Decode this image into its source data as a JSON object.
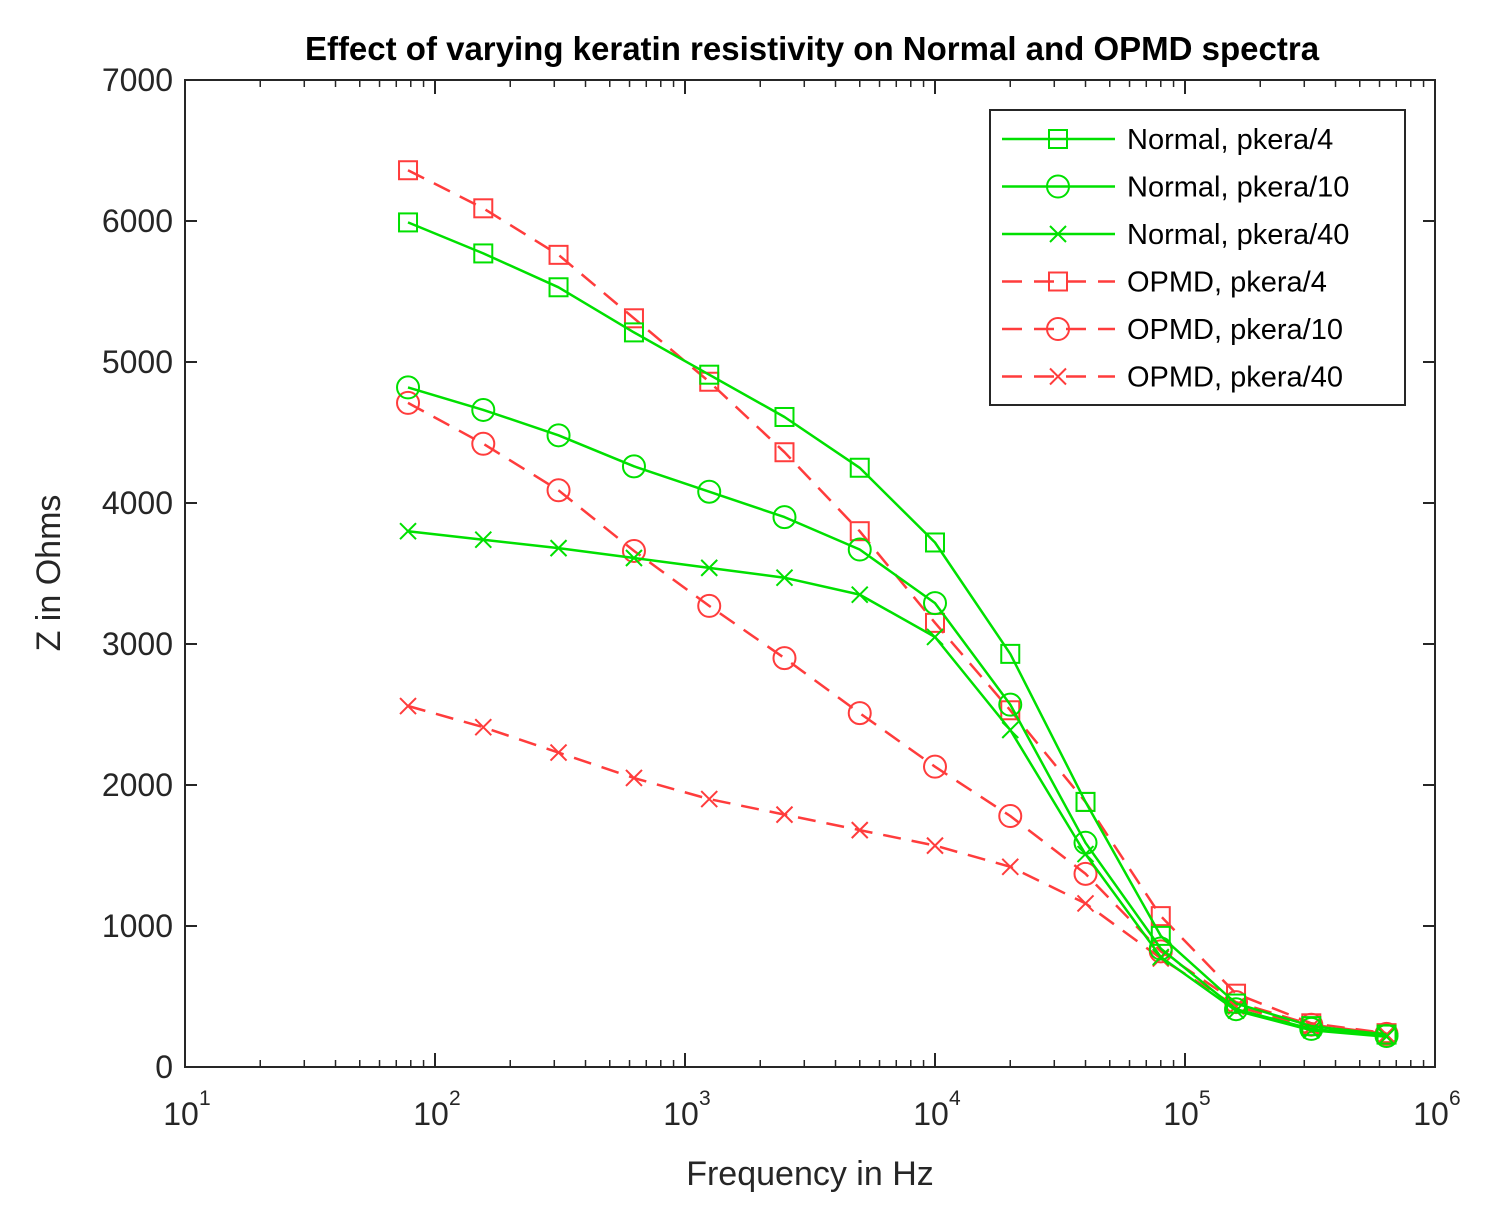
{
  "chart_data": {
    "type": "line",
    "title": "Effect of varying keratin resistivity on Normal and OPMD spectra",
    "xlabel": "Frequency in Hz",
    "ylabel": "Z in Ohms",
    "xscale": "log",
    "xlim": [
      10,
      1000000
    ],
    "ylim": [
      0,
      7000
    ],
    "x_tick_bases": [
      "10",
      "10",
      "10",
      "10",
      "10",
      "10"
    ],
    "x_tick_exponents": [
      "1",
      "2",
      "3",
      "4",
      "5",
      "6"
    ],
    "y_ticks": [
      "0",
      "1000",
      "2000",
      "3000",
      "4000",
      "5000",
      "6000",
      "7000"
    ],
    "legend_position": "top-right",
    "x": [
      78,
      156,
      312,
      625,
      1250,
      2500,
      5000,
      10000,
      20000,
      40000,
      80000,
      160000,
      320000,
      640000
    ],
    "series": [
      {
        "name": "Normal, pkera/4",
        "color": "#00e000",
        "linestyle": "solid",
        "marker": "square",
        "values": [
          5990,
          5770,
          5530,
          5210,
          4910,
          4610,
          4250,
          3720,
          2930,
          1880,
          930,
          450,
          290,
          230
        ]
      },
      {
        "name": "Normal, pkera/10",
        "color": "#00e000",
        "linestyle": "solid",
        "marker": "circle",
        "values": [
          4820,
          4660,
          4480,
          4260,
          4080,
          3900,
          3670,
          3290,
          2570,
          1590,
          840,
          410,
          270,
          220
        ]
      },
      {
        "name": "Normal, pkera/40",
        "color": "#00e000",
        "linestyle": "solid",
        "marker": "x",
        "values": [
          3800,
          3740,
          3680,
          3610,
          3540,
          3470,
          3350,
          3050,
          2390,
          1510,
          780,
          400,
          260,
          215
        ]
      },
      {
        "name": "OPMD, pkera/4",
        "color": "#ff3c3c",
        "linestyle": "dashed",
        "marker": "square",
        "values": [
          6360,
          6090,
          5760,
          5310,
          4860,
          4360,
          3800,
          3150,
          2530,
          1880,
          1070,
          520,
          310,
          240
        ]
      },
      {
        "name": "OPMD, pkera/10",
        "color": "#ff3c3c",
        "linestyle": "dashed",
        "marker": "circle",
        "values": [
          4710,
          4420,
          4090,
          3660,
          3270,
          2900,
          2510,
          2130,
          1780,
          1370,
          820,
          460,
          300,
          235
        ]
      },
      {
        "name": "OPMD, pkera/40",
        "color": "#ff3c3c",
        "linestyle": "dashed",
        "marker": "x",
        "values": [
          2560,
          2410,
          2230,
          2050,
          1900,
          1790,
          1680,
          1570,
          1420,
          1160,
          770,
          430,
          285,
          230
        ]
      }
    ]
  }
}
